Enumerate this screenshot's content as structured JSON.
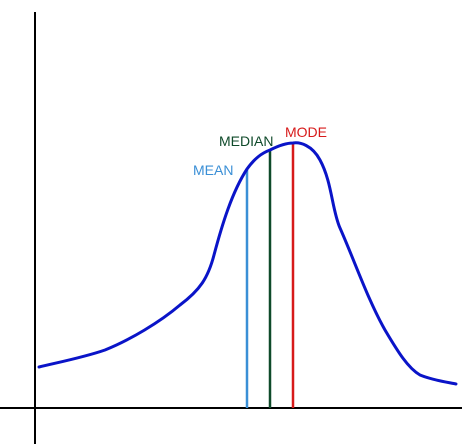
{
  "labels": {
    "mean": "MEAN",
    "median": "MEDIAN",
    "mode": "MODE"
  },
  "colors": {
    "curve": "#0a14c8",
    "axes": "#000000",
    "mean": "#3a8fd6",
    "median": "#0f4a2a",
    "mode": "#d71a1a"
  }
}
